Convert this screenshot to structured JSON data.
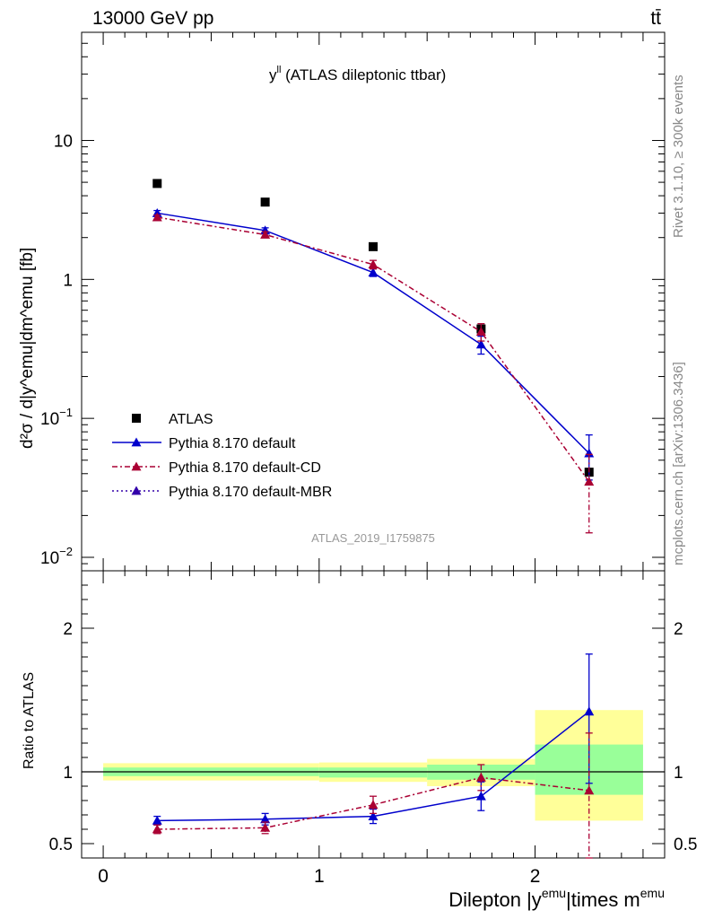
{
  "header": {
    "energy_label": "13000 GeV pp",
    "process_label": "tt̄"
  },
  "side_labels": {
    "rivet": "Rivet 3.1.10, ≥ 300k events",
    "mcplots": "mcplots.cern.ch [arXiv:1306.3436]"
  },
  "chart_data": [
    {
      "type": "scatter",
      "panel": "main",
      "title_main": "y",
      "title_sup": "ll",
      "title_rest": " (ATLAS dileptonic ttbar)",
      "watermark": "ATLAS_2019_I1759875",
      "ylabel": "d²σ / d|y^emu|dm^emu [fb]",
      "yscale": "log",
      "ylim": [
        0.008,
        60
      ],
      "xlim": [
        -0.1,
        2.6
      ],
      "y_ticks": [
        {
          "value": 0.01,
          "base": "10",
          "exp": "−2"
        },
        {
          "value": 0.1,
          "base": "10",
          "exp": "−1"
        },
        {
          "value": 1,
          "base": "1",
          "exp": ""
        },
        {
          "value": 10,
          "base": "10",
          "exp": ""
        }
      ],
      "x": [
        0.25,
        0.75,
        1.25,
        1.75,
        2.25
      ],
      "series": [
        {
          "name": "ATLAS",
          "color": "#000000",
          "marker": "square",
          "line": "none",
          "values": [
            4.9,
            3.6,
            1.72,
            0.44,
            0.041
          ]
        },
        {
          "name": "Pythia 8.170 default",
          "color": "#0000cc",
          "marker": "triangle",
          "line": "solid",
          "values": [
            3.0,
            2.25,
            1.12,
            0.34,
            0.056
          ],
          "err_low": [
            0.13,
            0.1,
            0.07,
            0.05,
            0.02
          ],
          "err_high": [
            0.13,
            0.1,
            0.07,
            0.05,
            0.02
          ]
        },
        {
          "name": "Pythia 8.170 default-CD",
          "color": "#aa0033",
          "marker": "triangle",
          "line": "dashdot",
          "values": [
            2.8,
            2.1,
            1.28,
            0.42,
            0.035
          ],
          "err_low": [
            0.1,
            0.1,
            0.09,
            0.06,
            0.02
          ],
          "err_high": [
            0.1,
            0.1,
            0.09,
            0.06,
            0.02
          ]
        },
        {
          "name": "Pythia 8.170 default-MBR",
          "color": "#3300aa",
          "marker": "triangle",
          "line": "dotted",
          "values": []
        }
      ]
    },
    {
      "type": "scatter",
      "panel": "ratio",
      "ylabel": "Ratio to ATLAS",
      "xlabel_main": "Dilepton |y",
      "xlabel_sup1": "emu",
      "xlabel_mid": "|times m",
      "xlabel_sup2": "emu",
      "ylim": [
        0.4,
        2.4
      ],
      "xlim": [
        -0.1,
        2.6
      ],
      "x_ticks": [
        0,
        1,
        2
      ],
      "y_ticks": [
        0.5,
        1,
        2
      ],
      "bands": [
        {
          "xmin": 0.0,
          "xmax": 1.0,
          "green": [
            0.97,
            1.03
          ],
          "yellow": [
            0.94,
            1.06
          ]
        },
        {
          "xmin": 1.0,
          "xmax": 1.5,
          "green": [
            0.96,
            1.03
          ],
          "yellow": [
            0.93,
            1.065
          ]
        },
        {
          "xmin": 1.5,
          "xmax": 2.0,
          "green": [
            0.945,
            1.05
          ],
          "yellow": [
            0.9,
            1.09
          ]
        },
        {
          "xmin": 2.0,
          "xmax": 2.5,
          "green": [
            0.84,
            1.19
          ],
          "yellow": [
            0.66,
            1.43
          ]
        }
      ],
      "x": [
        0.25,
        0.75,
        1.25,
        1.75,
        2.25
      ],
      "series": [
        {
          "name": "Pythia 8.170 default",
          "color": "#0000cc",
          "line": "solid",
          "values": [
            0.66,
            0.67,
            0.69,
            0.83,
            1.42
          ],
          "err_low": [
            0.03,
            0.04,
            0.05,
            0.1,
            0.5
          ],
          "err_high": [
            0.03,
            0.04,
            0.05,
            0.1,
            0.4
          ]
        },
        {
          "name": "Pythia 8.170 default-CD",
          "color": "#aa0033",
          "line": "dashdot",
          "values": [
            0.6,
            0.61,
            0.77,
            0.96,
            0.87
          ],
          "err_low": [
            0.03,
            0.04,
            0.06,
            0.09,
            0.52
          ],
          "err_high": [
            0.03,
            0.04,
            0.06,
            0.09,
            0.4
          ]
        }
      ]
    }
  ]
}
